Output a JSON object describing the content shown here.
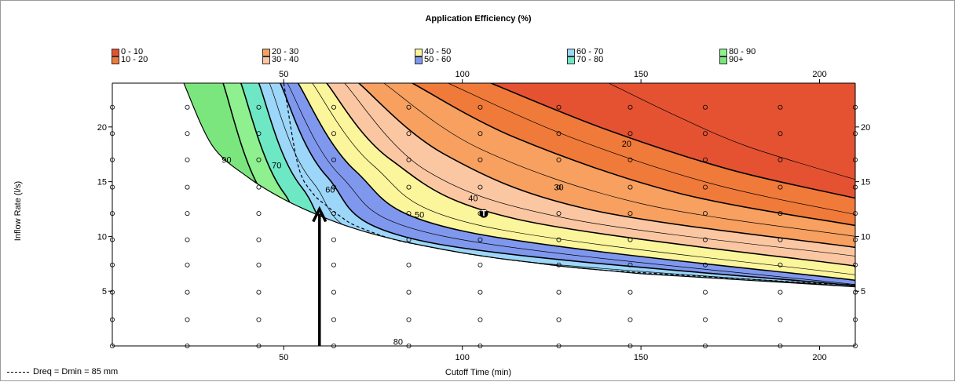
{
  "chart_data": {
    "type": "contour",
    "title": "Application Efficiency (%)",
    "xlabel": "Cutoff Time (min)",
    "ylabel": "Inflow Rate (l/s)",
    "xlim": [
      2,
      210
    ],
    "ylim": [
      0,
      24
    ],
    "x_ticks": [
      50,
      100,
      150,
      200
    ],
    "y_ticks": [
      5,
      10,
      15,
      20
    ],
    "legend": [
      {
        "label": "0 - 10",
        "color": "#e45232"
      },
      {
        "label": "10 - 20",
        "color": "#f07a3a"
      },
      {
        "label": "20 - 30",
        "color": "#f7a060"
      },
      {
        "label": "30 - 40",
        "color": "#fbc7a3"
      },
      {
        "label": "40 - 50",
        "color": "#fbf59b"
      },
      {
        "label": "50 - 60",
        "color": "#7f98ee"
      },
      {
        "label": "60 - 70",
        "color": "#9cd6f8"
      },
      {
        "label": "70 - 80",
        "color": "#6ee8c4"
      },
      {
        "label": "80 - 90",
        "color": "#8ef08f"
      },
      {
        "label": "90+",
        "color": "#7ce67e"
      }
    ],
    "contour_labels": [
      {
        "text": "90",
        "x": 34,
        "y": 17
      },
      {
        "text": "70",
        "x": 48,
        "y": 16.5
      },
      {
        "text": "60",
        "x": 63,
        "y": 14.3
      },
      {
        "text": "50",
        "x": 88,
        "y": 12
      },
      {
        "text": "40",
        "x": 103,
        "y": 13.5
      },
      {
        "text": "30",
        "x": 127,
        "y": 14.5
      },
      {
        "text": "20",
        "x": 146,
        "y": 18.5
      },
      {
        "text": "80",
        "x": 82,
        "y": 0.4
      }
    ],
    "contours": [
      {
        "efficiency": 5,
        "x": [
          141,
          160,
          180,
          210
        ],
        "y": [
          24,
          21,
          18.2,
          15.2
        ]
      },
      {
        "efficiency": 10,
        "x": [
          108,
          140,
          175,
          210
        ],
        "y": [
          24,
          19.8,
          16.1,
          13.5
        ]
      },
      {
        "efficiency": 15,
        "x": [
          96,
          130,
          170,
          210
        ],
        "y": [
          24,
          19.1,
          14.8,
          12.0
        ]
      },
      {
        "efficiency": 20,
        "x": [
          86,
          115,
          160,
          210
        ],
        "y": [
          24,
          19.0,
          14.0,
          11.0
        ]
      },
      {
        "efficiency": 25,
        "x": [
          78,
          105,
          150,
          210
        ],
        "y": [
          24,
          18.0,
          13.0,
          10.0
        ]
      },
      {
        "efficiency": 30,
        "x": [
          71,
          95,
          135,
          210
        ],
        "y": [
          24,
          17.5,
          12.5,
          9.0
        ]
      },
      {
        "efficiency": 35,
        "x": [
          67,
          90,
          130,
          210
        ],
        "y": [
          24,
          16.0,
          11.6,
          8.2
        ]
      },
      {
        "efficiency": 40,
        "x": [
          62,
          80,
          115,
          210
        ],
        "y": [
          24,
          17.0,
          11.6,
          7.3
        ]
      },
      {
        "efficiency": 45,
        "x": [
          58,
          75,
          105,
          210
        ],
        "y": [
          24,
          16.5,
          11.0,
          6.5
        ]
      },
      {
        "efficiency": 50,
        "x": [
          54,
          70,
          100,
          210
        ],
        "y": [
          24,
          16.0,
          10.5,
          6.0
        ]
      },
      {
        "efficiency": 55,
        "x": [
          51,
          66,
          95,
          210
        ],
        "y": [
          24,
          15.5,
          10.0,
          5.6
        ]
      },
      {
        "efficiency": 60,
        "x": [
          49,
          62,
          90,
          210
        ],
        "y": [
          24,
          15.5,
          9.5,
          5.5
        ]
      },
      {
        "efficiency": 65,
        "x": [
          46,
          58,
          85,
          210
        ],
        "y": [
          24,
          15.0,
          9.0,
          5.4
        ]
      },
      {
        "efficiency": 70,
        "x": [
          43,
          55,
          82,
          210
        ],
        "y": [
          24,
          14.5,
          8.4,
          5.3
        ]
      },
      {
        "efficiency": 80,
        "x": [
          38,
          50,
          75,
          210
        ],
        "y": [
          24,
          14.0,
          8.0,
          5.2
        ]
      },
      {
        "efficiency": 90,
        "x": [
          33,
          44,
          65,
          210
        ],
        "y": [
          24,
          14.0,
          8.5,
          5.1
        ]
      }
    ],
    "boundary": {
      "x": [
        22,
        30,
        40,
        50,
        60,
        70,
        80,
        90,
        100,
        110,
        120,
        130,
        140,
        150,
        160,
        170,
        180,
        190,
        200,
        210
      ],
      "y": [
        24,
        18.3,
        15.4,
        13.4,
        11.9,
        10.7,
        9.8,
        9.1,
        8.5,
        8.0,
        7.6,
        7.2,
        6.9,
        6.6,
        6.4,
        6.2,
        6.0,
        5.8,
        5.6,
        5.4
      ]
    },
    "dreq_line": {
      "label": "Dreq = Dmin = 85 mm",
      "x": [
        50,
        54,
        58,
        62,
        66,
        70,
        80,
        90,
        100,
        110,
        120,
        130,
        140,
        150,
        160,
        170,
        180,
        190,
        200,
        210
      ],
      "y": [
        24,
        16.5,
        14.0,
        12.8,
        11.8,
        11.0,
        9.8,
        9.1,
        8.5,
        8.0,
        7.6,
        7.2,
        6.9,
        6.7,
        6.5,
        6.3,
        6.1,
        5.9,
        5.7,
        5.6
      ]
    },
    "grid_points_x": [
      2,
      23,
      43,
      64,
      85,
      105,
      127,
      147,
      168,
      189,
      210
    ],
    "grid_points_y": [
      0,
      2.4,
      4.9,
      7.4,
      9.7,
      12.1,
      14.5,
      17.0,
      19.4,
      21.8
    ],
    "marker": {
      "symbol": "T",
      "x": 106,
      "y": 12.1
    },
    "arrow": {
      "x": 60,
      "y_from": 0,
      "y_to": 12.5
    }
  }
}
